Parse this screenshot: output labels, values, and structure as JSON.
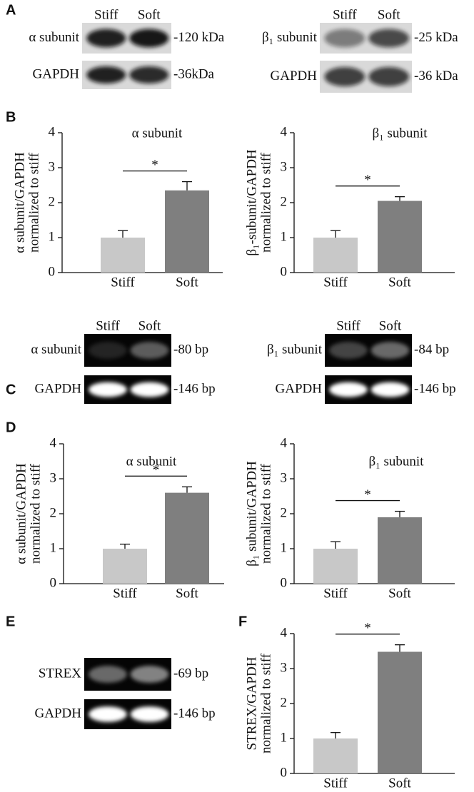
{
  "panel_labels": [
    "A",
    "B",
    "C",
    "D",
    "E",
    "F"
  ],
  "blots": [
    {
      "lanes": [
        "Stiff",
        "Soft"
      ],
      "rows": [
        {
          "label": "α subunit",
          "size": "-120 kDa"
        },
        {
          "label": "GAPDH",
          "size": "-36kDa"
        }
      ]
    },
    {
      "lanes": [
        "Stiff",
        "Soft"
      ],
      "rows": [
        {
          "label": "β₁ subunit",
          "size": "-25 kDa"
        },
        {
          "label": "GAPDH",
          "size": "-36 kDa"
        }
      ]
    },
    {
      "lanes": [
        "Stiff",
        "Soft"
      ],
      "rows": [
        {
          "label": "α subunit",
          "size": "-80 bp"
        },
        {
          "label": "GAPDH",
          "size": "-146 bp"
        }
      ]
    },
    {
      "lanes": [
        "Stiff",
        "Soft"
      ],
      "rows": [
        {
          "label": "β₁ subunit",
          "size": "-84 bp"
        },
        {
          "label": "GAPDH",
          "size": "-146 bp"
        }
      ]
    },
    {
      "rows": [
        {
          "label": "STREX",
          "size": "-69 bp"
        },
        {
          "label": "GAPDH",
          "size": "-146 bp"
        }
      ]
    }
  ],
  "chart_data": [
    {
      "type": "bar",
      "title": "α subunit",
      "ylabel": [
        "α subunit/GAPDH",
        "normalized to stiff"
      ],
      "categories": [
        "Stiff",
        "Soft"
      ],
      "values": [
        1.0,
        2.35
      ],
      "errors": [
        0.2,
        0.25
      ],
      "colors": [
        "#c8c8c8",
        "#7f7f7f"
      ],
      "ylim": [
        0,
        4
      ],
      "yticks": [
        0,
        1,
        2,
        3,
        4
      ],
      "annotation": "*"
    },
    {
      "type": "bar",
      "title": "β₁ subunit",
      "ylabel": [
        "β₁-subunit/GAPDH",
        "normalized to stiff"
      ],
      "categories": [
        "Stiff",
        "Soft"
      ],
      "values": [
        1.0,
        2.05
      ],
      "errors": [
        0.2,
        0.12
      ],
      "colors": [
        "#c8c8c8",
        "#7f7f7f"
      ],
      "ylim": [
        0,
        4
      ],
      "yticks": [
        0,
        1,
        2,
        3,
        4
      ],
      "annotation": "*"
    },
    {
      "type": "bar",
      "title": "α subunit",
      "ylabel": [
        "α subunit/GAPDH",
        "normalized to stiff"
      ],
      "categories": [
        "Stiff",
        "Soft"
      ],
      "values": [
        1.0,
        2.6
      ],
      "errors": [
        0.13,
        0.17
      ],
      "colors": [
        "#c8c8c8",
        "#7f7f7f"
      ],
      "ylim": [
        0,
        4
      ],
      "yticks": [
        0,
        1,
        2,
        3,
        4
      ],
      "annotation": "*"
    },
    {
      "type": "bar",
      "title": "β₁ subunit",
      "ylabel": [
        "β₁ subunit/GAPDH",
        "normalized to stiff"
      ],
      "categories": [
        "Stiff",
        "Soft"
      ],
      "values": [
        1.0,
        1.9
      ],
      "errors": [
        0.2,
        0.17
      ],
      "colors": [
        "#c8c8c8",
        "#7f7f7f"
      ],
      "ylim": [
        0,
        4
      ],
      "yticks": [
        0,
        1,
        2,
        3,
        4
      ],
      "annotation": "*"
    },
    {
      "type": "bar",
      "ylabel": [
        "STREX/GAPDH",
        "normalized to stiff"
      ],
      "categories": [
        "Stiff",
        "Soft"
      ],
      "values": [
        1.0,
        3.48
      ],
      "errors": [
        0.17,
        0.2
      ],
      "colors": [
        "#c8c8c8",
        "#7f7f7f"
      ],
      "ylim": [
        0,
        4
      ],
      "yticks": [
        0,
        1,
        2,
        3,
        4
      ],
      "annotation": "*"
    }
  ]
}
